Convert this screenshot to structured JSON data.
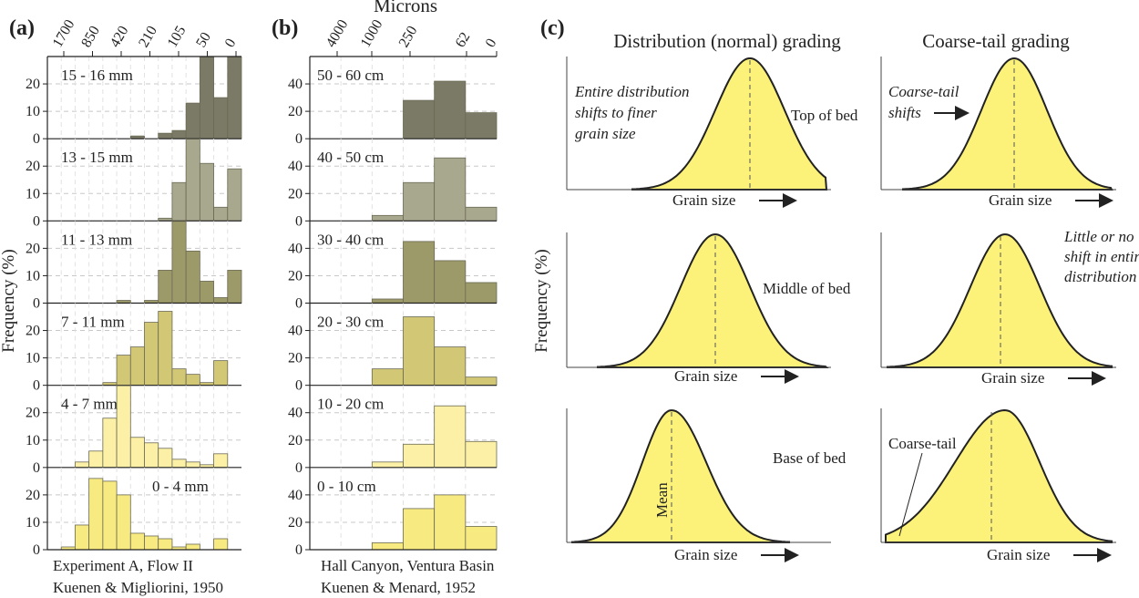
{
  "labels": {
    "a": "(a)",
    "b": "(b)",
    "c": "(c)",
    "microns": "Microns",
    "frequency": "Frequency (%)",
    "caption_a1": "Experiment A, Flow II",
    "caption_a2": "Kuenen & Migliorini, 1950",
    "caption_b1": "Hall Canyon, Ventura Basin",
    "caption_b2": "Kuenen & Menard, 1952"
  },
  "chart_data": [
    {
      "type": "bar",
      "panel": "a",
      "top_axis_ticks": [
        "1700",
        "850",
        "420",
        "210",
        "105",
        "50",
        "0"
      ],
      "ylabel": "Frequency (%)",
      "ylim": [
        0,
        30
      ],
      "yticks": [
        "0",
        "10",
        "20"
      ],
      "bins": 14,
      "caption": [
        "Experiment A, Flow II",
        "Kuenen & Migliorini, 1950"
      ],
      "series": [
        {
          "name": "15 - 16 mm",
          "color": "#7a7a66",
          "values": [
            0,
            0,
            0,
            0,
            0,
            0,
            1,
            0,
            2,
            3,
            13,
            30,
            15,
            35
          ]
        },
        {
          "name": "13 - 15 mm",
          "color": "#a8a88e",
          "values": [
            0,
            0,
            0,
            0,
            0,
            0,
            0,
            0,
            1,
            14,
            32,
            21,
            5,
            19
          ]
        },
        {
          "name": "11 - 13 mm",
          "color": "#9d9a6a",
          "values": [
            0,
            0,
            0,
            0,
            0,
            1,
            0,
            1,
            12,
            33,
            19,
            8,
            2,
            12
          ]
        },
        {
          "name": "7 - 11 mm",
          "color": "#d2c774",
          "values": [
            0,
            0,
            0,
            0,
            1,
            11,
            14,
            23,
            27,
            6,
            4,
            1,
            9,
            0
          ]
        },
        {
          "name": "4 - 7 mm",
          "color": "#fbf0a6",
          "values": [
            0,
            0,
            2,
            6,
            18,
            32,
            11,
            9,
            7,
            3,
            2,
            1,
            5,
            0
          ]
        },
        {
          "name": "0 - 4 mm",
          "color": "#f7ea80",
          "values": [
            0,
            1,
            9,
            26,
            25,
            20,
            6,
            5,
            4,
            1,
            2,
            0,
            4,
            0
          ]
        }
      ]
    },
    {
      "type": "bar",
      "panel": "b",
      "top_axis_title": "Microns",
      "top_axis_ticks": [
        "4000",
        "1000",
        "250",
        "62",
        "0"
      ],
      "ylim": [
        0,
        60
      ],
      "yticks": [
        "0",
        "20",
        "40"
      ],
      "bins": 6,
      "caption": [
        "Hall Canyon, Ventura Basin",
        "Kuenen & Menard, 1952"
      ],
      "series": [
        {
          "name": "50 - 60 cm",
          "color": "#7a7a66",
          "values": [
            0,
            0,
            0,
            28,
            42,
            19
          ]
        },
        {
          "name": "40 - 50 cm",
          "color": "#a8a88e",
          "values": [
            0,
            0,
            4,
            28,
            46,
            10
          ]
        },
        {
          "name": "30 - 40 cm",
          "color": "#9d9a6a",
          "values": [
            0,
            0,
            3,
            45,
            31,
            15
          ]
        },
        {
          "name": "20 - 30 cm",
          "color": "#d2c774",
          "values": [
            0,
            0,
            12,
            50,
            28,
            6
          ]
        },
        {
          "name": "10 - 20 cm",
          "color": "#fbf0a6",
          "values": [
            0,
            0,
            4,
            17,
            45,
            19
          ]
        },
        {
          "name": "0 - 10 cm",
          "color": "#f7ea80",
          "values": [
            0,
            0,
            5,
            30,
            40,
            17
          ]
        }
      ]
    },
    {
      "type": "line",
      "panel": "c",
      "ylabel": "Frequency (%)",
      "xlabel": "Grain size",
      "fill": "#fcf27a",
      "columns": [
        "Distribution (normal) grading",
        "Coarse-tail grading"
      ],
      "rows": [
        "Top of bed",
        "Middle of bed",
        "Base of bed"
      ],
      "annotations": {
        "normal_top": [
          "Entire distribution",
          "shifts to finer",
          "grain size"
        ],
        "coarse_top": [
          "Coarse-tail",
          "shifts"
        ],
        "coarse_middle": [
          "Little or no",
          "shift in entire",
          "distribution"
        ],
        "mean": "Mean",
        "coarse_tail": "Coarse-tail"
      }
    }
  ]
}
